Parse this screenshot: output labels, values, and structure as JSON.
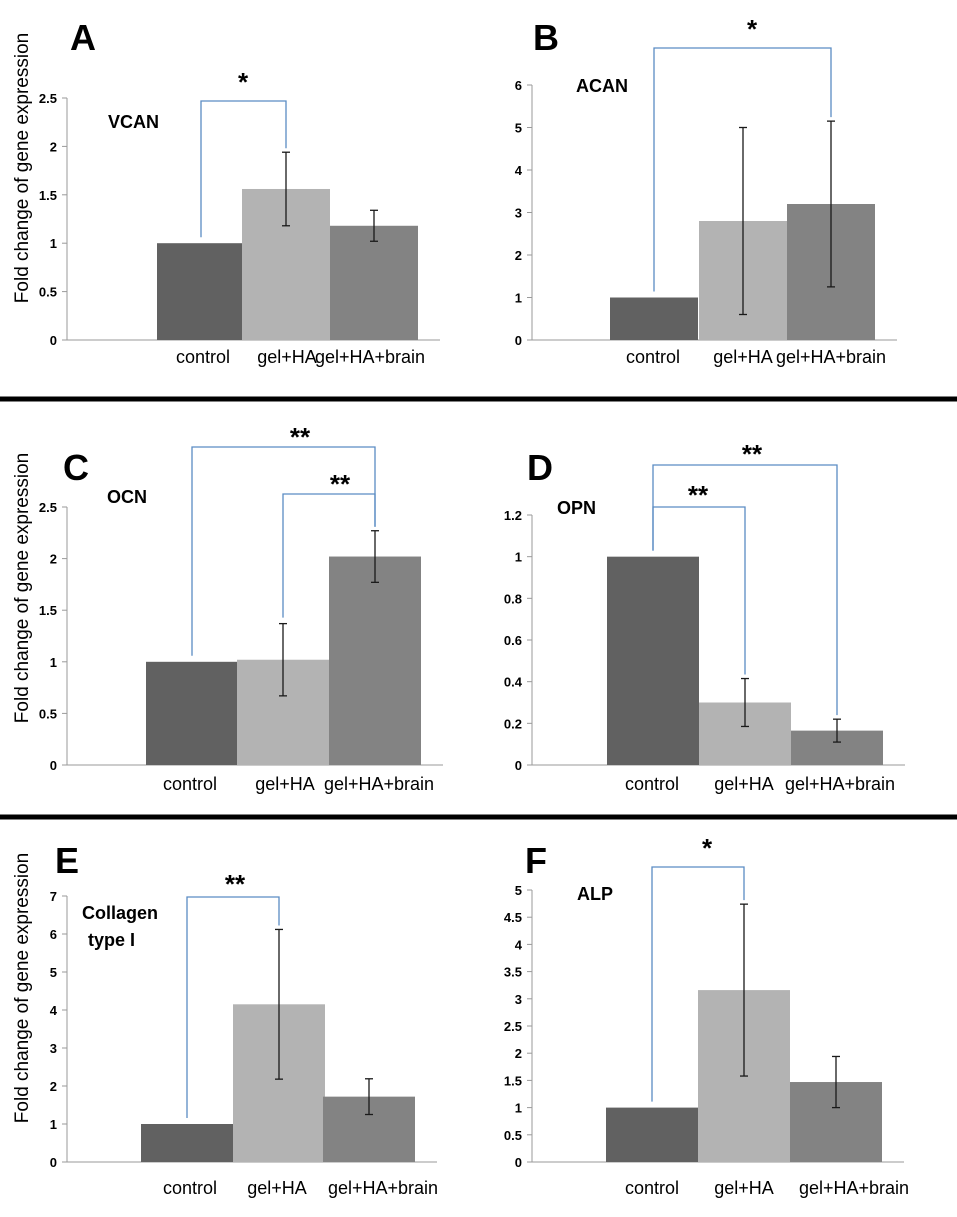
{
  "chart_data": [
    {
      "panel": "A",
      "type": "bar",
      "gene": [
        "VCAN"
      ],
      "ylabel": "Fold change of gene expression",
      "categories": [
        "control",
        "gel+HA",
        "gel+HA+brain"
      ],
      "values": [
        1.0,
        1.56,
        1.18
      ],
      "errors": [
        0,
        0.38,
        0.16
      ],
      "yticks": [
        "0",
        "0.5",
        "1",
        "1.5",
        "2",
        "2.5"
      ],
      "ylim": [
        0,
        2.5
      ],
      "colors": [
        "#616161",
        "#b3b3b3",
        "#838383"
      ],
      "significance": [
        {
          "from": 0,
          "to": 1,
          "label": "*"
        }
      ]
    },
    {
      "panel": "B",
      "type": "bar",
      "gene": [
        "ACAN"
      ],
      "ylabel": "",
      "categories": [
        "control",
        "gel+HA",
        "gel+HA+brain"
      ],
      "values": [
        1.0,
        2.8,
        3.2
      ],
      "errors": [
        0,
        2.2,
        1.95
      ],
      "yticks": [
        "0",
        "1",
        "2",
        "3",
        "4",
        "5",
        "6"
      ],
      "ylim": [
        0,
        6
      ],
      "colors": [
        "#616161",
        "#b3b3b3",
        "#838383"
      ],
      "significance": [
        {
          "from": 0,
          "to": 2,
          "label": "*"
        }
      ]
    },
    {
      "panel": "C",
      "type": "bar",
      "gene": [
        "OCN"
      ],
      "ylabel": "Fold change of gene expression",
      "categories": [
        "control",
        "gel+HA",
        "gel+HA+brain"
      ],
      "values": [
        1.0,
        1.02,
        2.02
      ],
      "errors": [
        0,
        0.35,
        0.25
      ],
      "yticks": [
        "0",
        "0.5",
        "1",
        "1.5",
        "2",
        "2.5"
      ],
      "ylim": [
        0,
        2.5
      ],
      "colors": [
        "#616161",
        "#b3b3b3",
        "#838383"
      ],
      "significance": [
        {
          "from": 0,
          "to": 2,
          "label": "**"
        },
        {
          "from": 1,
          "to": 2,
          "label": "**"
        }
      ]
    },
    {
      "panel": "D",
      "type": "bar",
      "gene": [
        "OPN"
      ],
      "ylabel": "",
      "categories": [
        "control",
        "gel+HA",
        "gel+HA+brain"
      ],
      "values": [
        1.0,
        0.3,
        0.165
      ],
      "errors": [
        0,
        0.115,
        0.055
      ],
      "yticks": [
        "0",
        "0.2",
        "0.4",
        "0.6",
        "0.8",
        "1",
        "1.2"
      ],
      "ylim": [
        0,
        1.2
      ],
      "colors": [
        "#616161",
        "#b3b3b3",
        "#838383"
      ],
      "significance": [
        {
          "from": 0,
          "to": 1,
          "label": "**"
        },
        {
          "from": 0,
          "to": 2,
          "label": "**"
        }
      ]
    },
    {
      "panel": "E",
      "type": "bar",
      "gene": [
        "Collagen",
        "type I"
      ],
      "ylabel": "Fold change of gene expression",
      "categories": [
        "control",
        "gel+HA",
        "gel+HA+brain"
      ],
      "values": [
        1.0,
        4.15,
        1.72
      ],
      "errors": [
        0,
        1.97,
        0.47
      ],
      "yticks": [
        "0",
        "1",
        "2",
        "3",
        "4",
        "5",
        "6",
        "7"
      ],
      "ylim": [
        0,
        7
      ],
      "colors": [
        "#616161",
        "#b3b3b3",
        "#838383"
      ],
      "significance": [
        {
          "from": 0,
          "to": 1,
          "label": "**"
        }
      ]
    },
    {
      "panel": "F",
      "type": "bar",
      "gene": [
        "ALP"
      ],
      "ylabel": "",
      "categories": [
        "control",
        "gel+HA",
        "gel+HA+brain"
      ],
      "values": [
        1.0,
        3.16,
        1.47
      ],
      "errors": [
        0,
        1.58,
        0.47
      ],
      "yticks": [
        "0",
        "0.5",
        "1",
        "1.5",
        "2",
        "2.5",
        "3",
        "3.5",
        "4",
        "4.5",
        "5"
      ],
      "ylim": [
        0,
        5
      ],
      "colors": [
        "#616161",
        "#b3b3b3",
        "#838383"
      ],
      "significance": [
        {
          "from": 0,
          "to": 1,
          "label": "*"
        }
      ]
    }
  ]
}
